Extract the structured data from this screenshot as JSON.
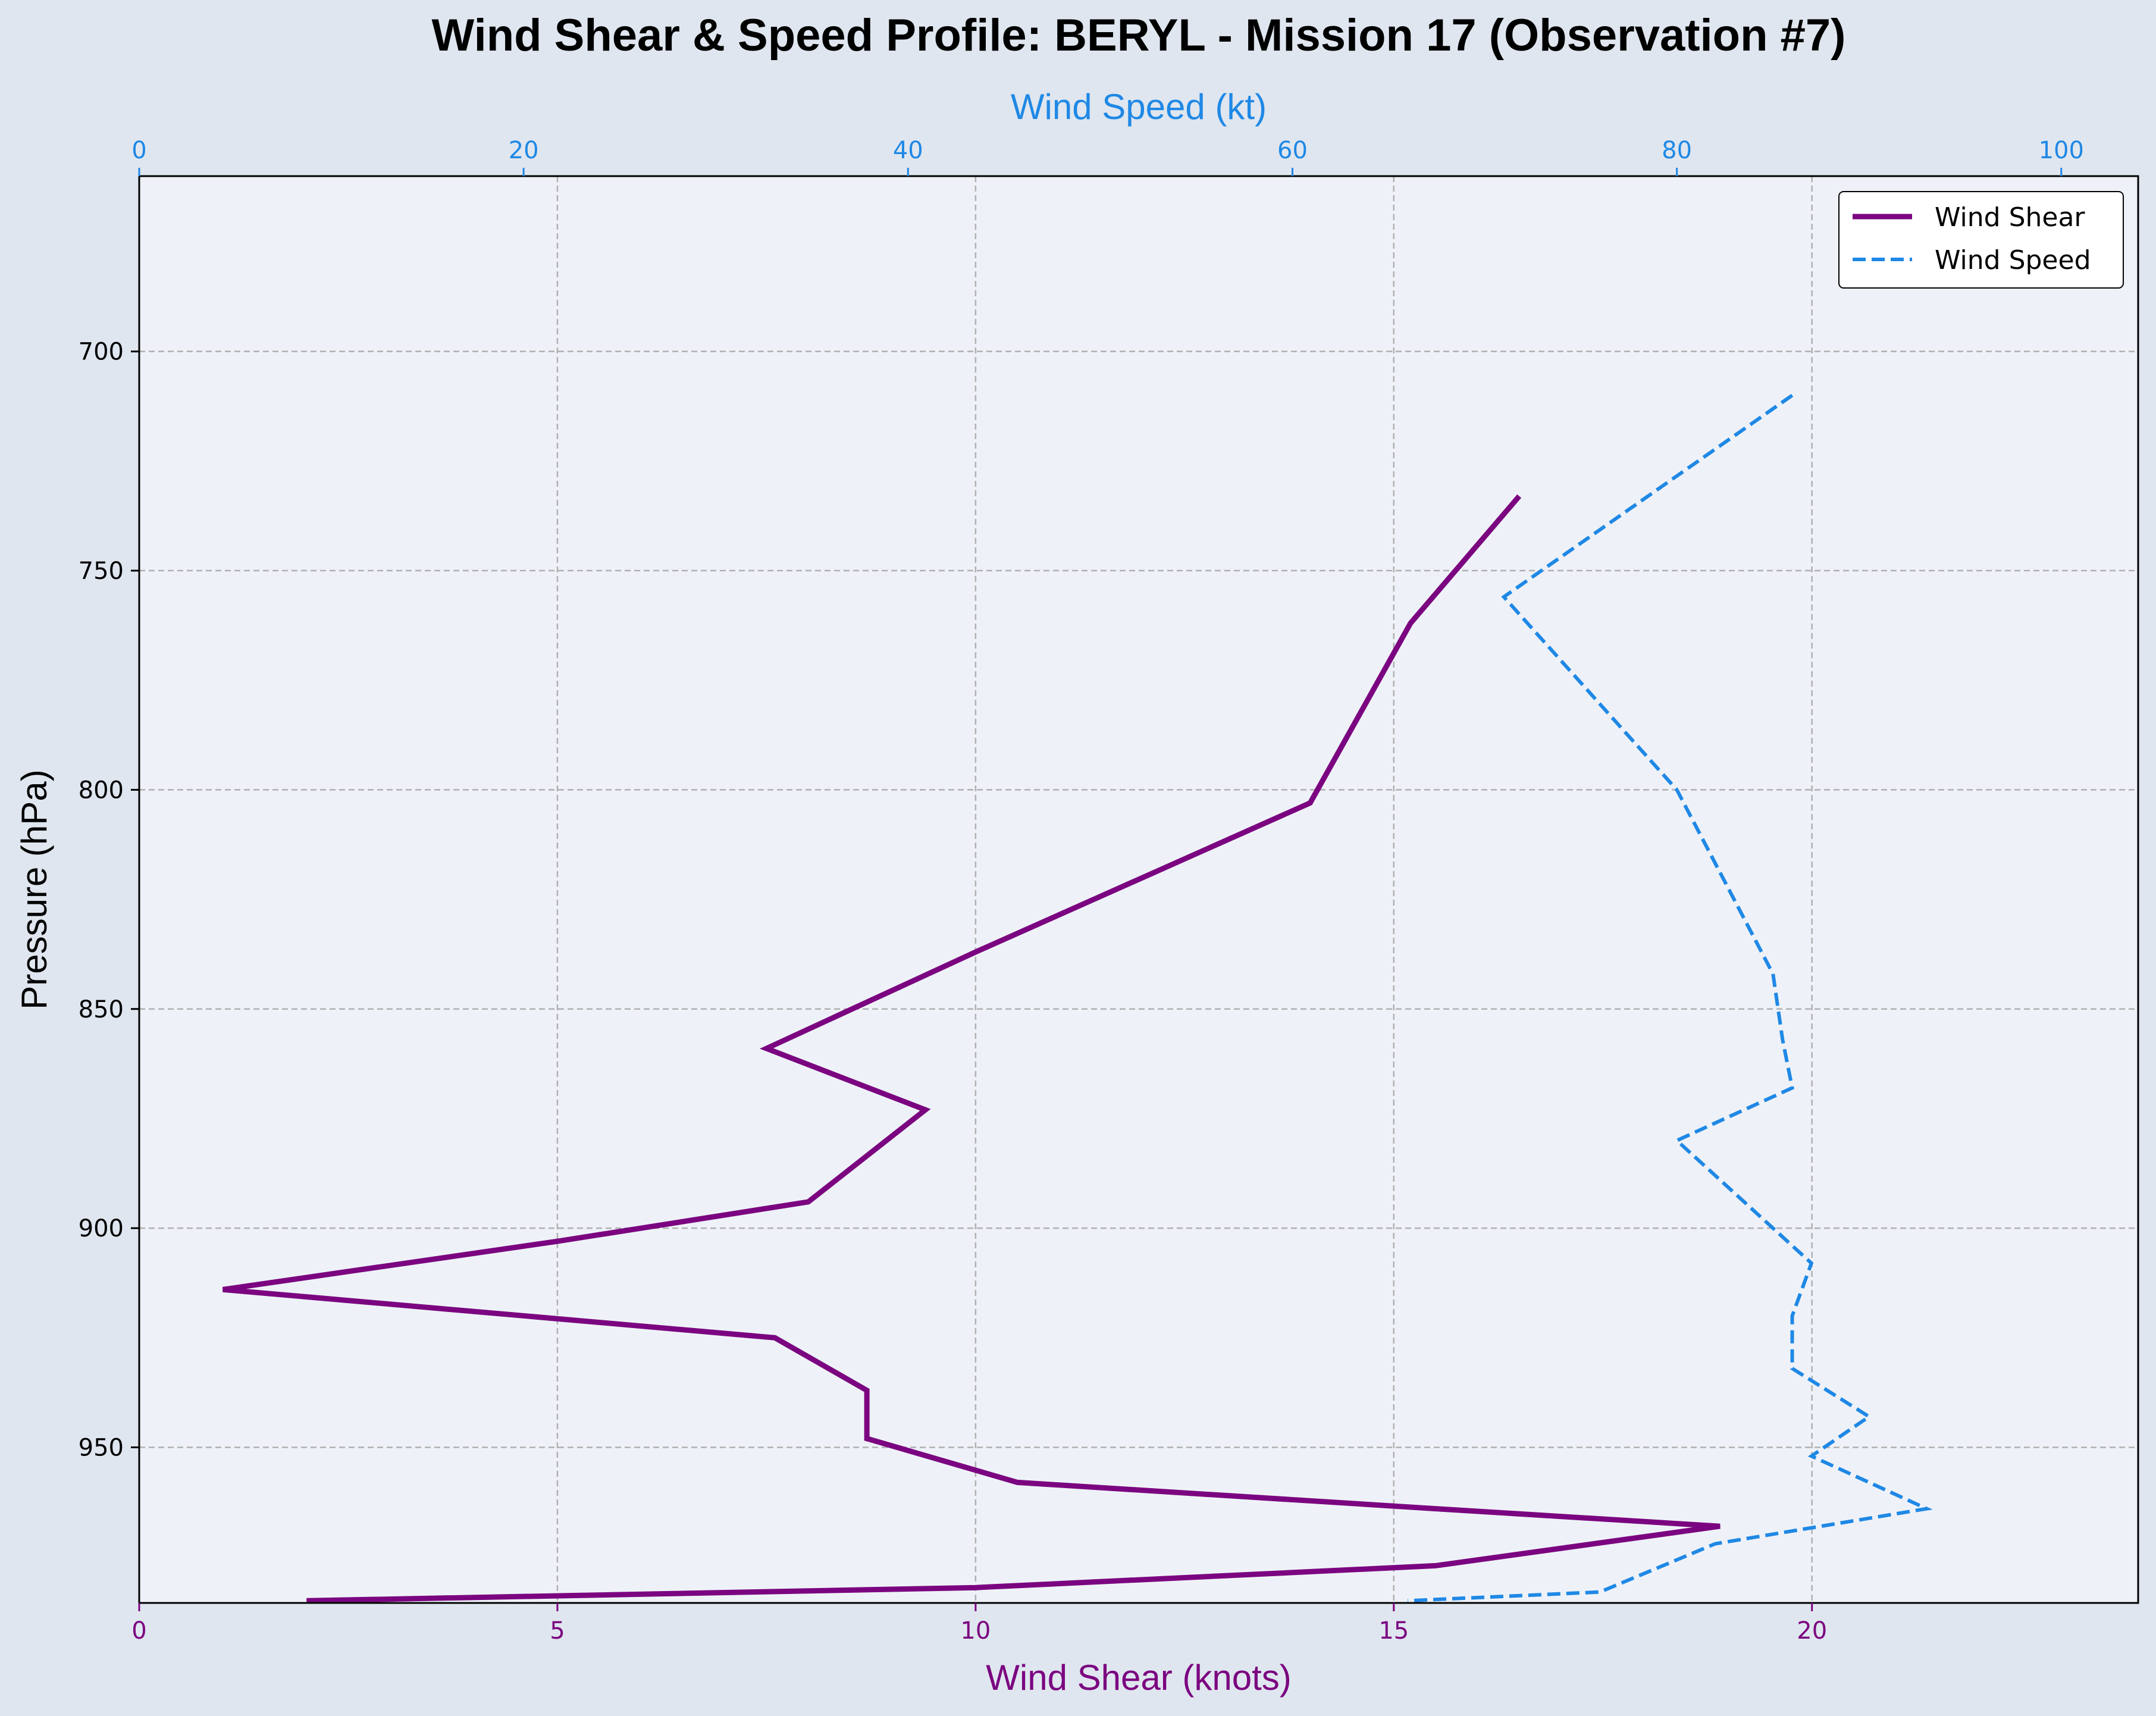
{
  "colors": {
    "page_bg": "#dfe6ef",
    "plot_bg": "#eef2f8",
    "shear": "#7b0480",
    "speed": "#1f88e5",
    "grid": "#b0b0b0",
    "axis": "#000000"
  },
  "chart_data": {
    "type": "line",
    "title": "Wind Shear & Speed Profile: BERYL - Mission 17 (Observation #7)",
    "ylabel": "Pressure (hPa)",
    "y_inverted": true,
    "ylim": [
      985.5,
      660
    ],
    "yticks": [
      700,
      750,
      800,
      850,
      900,
      950
    ],
    "grid": true,
    "legend_position": "upper-right",
    "x_bottom": {
      "label": "Wind Shear (knots)",
      "lim": [
        0,
        23.9
      ],
      "ticks": [
        0,
        5,
        10,
        15,
        20
      ],
      "color": "#7b0480"
    },
    "x_top": {
      "label": "Wind Speed (kt)",
      "lim": [
        0,
        104
      ],
      "ticks": [
        0,
        20,
        40,
        60,
        80,
        100
      ],
      "color": "#1f88e5"
    },
    "series": [
      {
        "name": "Wind Shear",
        "axis": "bottom",
        "style": "solid",
        "color": "#7b0480",
        "points": [
          [
            16.5,
            733
          ],
          [
            15.2,
            762
          ],
          [
            14.0,
            803
          ],
          [
            10.0,
            837
          ],
          [
            7.5,
            859
          ],
          [
            9.4,
            873
          ],
          [
            8.0,
            894
          ],
          [
            5.0,
            903
          ],
          [
            1.0,
            914
          ],
          [
            7.6,
            925
          ],
          [
            8.7,
            937
          ],
          [
            8.7,
            948
          ],
          [
            10.5,
            958
          ],
          [
            15.5,
            964
          ],
          [
            18.9,
            968
          ],
          [
            15.5,
            977
          ],
          [
            10.0,
            982
          ],
          [
            2.0,
            985
          ]
        ]
      },
      {
        "name": "Wind Speed",
        "axis": "top",
        "style": "dashed",
        "color": "#1f88e5",
        "points": [
          [
            86,
            710
          ],
          [
            71,
            756
          ],
          [
            80,
            800
          ],
          [
            85,
            842
          ],
          [
            85.5,
            857
          ],
          [
            86,
            868
          ],
          [
            80,
            880
          ],
          [
            86,
            904
          ],
          [
            87,
            908
          ],
          [
            86,
            920
          ],
          [
            86,
            932
          ],
          [
            90,
            943
          ],
          [
            87,
            952
          ],
          [
            93,
            964
          ],
          [
            82,
            972
          ],
          [
            76,
            983
          ],
          [
            66,
            985
          ]
        ]
      }
    ]
  }
}
